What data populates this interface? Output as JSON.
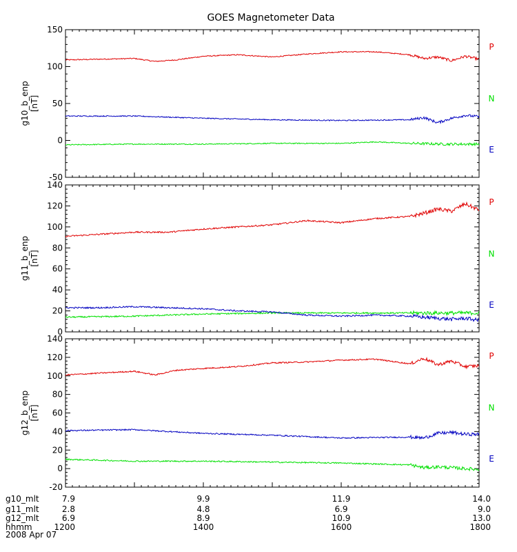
{
  "chart_data": {
    "type": "line",
    "title": "GOES Magnetometer Data",
    "date_label": "2008 Apr 07",
    "colors": {
      "P": "#e00000",
      "N": "#00e000",
      "E": "#0000c0"
    },
    "x_range": [
      1200,
      1800
    ],
    "panels": [
      {
        "ylabel": "g10_b_enp",
        "unit": "[nT]",
        "ylim": [
          -50,
          150
        ],
        "yticks": [
          -50,
          0,
          50,
          100,
          150
        ],
        "series": [
          {
            "name": "P",
            "color": "#e00000",
            "x": [
              1200,
              1250,
              1300,
              1330,
              1360,
              1400,
              1450,
              1500,
              1550,
              1600,
              1650,
              1700,
              1720,
              1740,
              1760,
              1780,
              1800
            ],
            "y": [
              109,
              110,
              111,
              107,
              109,
              114,
              116,
              113,
              117,
              120,
              120,
              116,
              111,
              113,
              108,
              114,
              110
            ]
          },
          {
            "name": "N",
            "color": "#00e000",
            "x": [
              1200,
              1300,
              1400,
              1500,
              1600,
              1650,
              1700,
              1750,
              1800
            ],
            "y": [
              -6,
              -5,
              -5,
              -4,
              -4,
              -2,
              -4,
              -5,
              -5
            ]
          },
          {
            "name": "E",
            "color": "#0000c0",
            "x": [
              1200,
              1300,
              1400,
              1500,
              1600,
              1700,
              1720,
              1740,
              1760,
              1780,
              1800
            ],
            "y": [
              33,
              33,
              30,
              28,
              27,
              28,
              31,
              24,
              30,
              34,
              32
            ]
          }
        ]
      },
      {
        "ylabel": "g11_b_enp",
        "unit": "[nT]",
        "ylim": [
          0,
          140
        ],
        "yticks": [
          0,
          20,
          40,
          60,
          80,
          100,
          120,
          140
        ],
        "series": [
          {
            "name": "P",
            "color": "#e00000",
            "x": [
              1200,
              1300,
              1350,
              1400,
              1450,
              1500,
              1550,
              1600,
              1650,
              1700,
              1720,
              1740,
              1760,
              1780,
              1800
            ],
            "y": [
              91,
              95,
              95,
              98,
              100,
              102,
              106,
              104,
              108,
              110,
              113,
              117,
              115,
              122,
              116
            ]
          },
          {
            "name": "N",
            "color": "#00e000",
            "x": [
              1200,
              1300,
              1400,
              1500,
              1600,
              1700,
              1800
            ],
            "y": [
              14,
              15,
              17,
              18,
              18,
              18,
              18
            ]
          },
          {
            "name": "E",
            "color": "#0000c0",
            "x": [
              1200,
              1250,
              1300,
              1350,
              1400,
              1450,
              1500,
              1550,
              1600,
              1650,
              1700,
              1720,
              1740,
              1760,
              1780,
              1800
            ],
            "y": [
              23,
              23,
              24,
              23,
              22,
              20,
              19,
              16,
              15,
              16,
              15,
              14,
              13,
              12,
              13,
              11
            ]
          }
        ]
      },
      {
        "ylabel": "g12_b_enp",
        "unit": "[nT]",
        "ylim": [
          -20,
          140
        ],
        "yticks": [
          -20,
          0,
          20,
          40,
          60,
          80,
          100,
          120,
          140
        ],
        "series": [
          {
            "name": "P",
            "color": "#e00000",
            "x": [
              1200,
              1250,
              1300,
              1330,
              1360,
              1400,
              1450,
              1500,
              1550,
              1600,
              1650,
              1700,
              1720,
              1740,
              1760,
              1780,
              1800
            ],
            "y": [
              101,
              103,
              105,
              101,
              106,
              108,
              110,
              114,
              115,
              117,
              118,
              113,
              119,
              112,
              116,
              110,
              111
            ]
          },
          {
            "name": "N",
            "color": "#00e000",
            "x": [
              1200,
              1300,
              1400,
              1500,
              1600,
              1700,
              1720,
              1740,
              1760,
              1780,
              1800
            ],
            "y": [
              10,
              8,
              8,
              7,
              6,
              4,
              1,
              2,
              1,
              0,
              -1
            ]
          },
          {
            "name": "E",
            "color": "#0000c0",
            "x": [
              1200,
              1300,
              1400,
              1500,
              1600,
              1700,
              1720,
              1740,
              1760,
              1780,
              1800
            ],
            "y": [
              41,
              42,
              38,
              36,
              33,
              34,
              33,
              38,
              39,
              37,
              37
            ]
          }
        ]
      }
    ],
    "time_axis": {
      "rows": [
        {
          "label": "g10_mlt",
          "values": [
            "7.9",
            "9.9",
            "11.9",
            "14.0"
          ]
        },
        {
          "label": "g11_mlt",
          "values": [
            "2.8",
            "4.8",
            "6.9",
            "9.0"
          ]
        },
        {
          "label": "g12_mlt",
          "values": [
            "6.9",
            "8.9",
            "10.9",
            "13.0"
          ]
        },
        {
          "label": "hhmm",
          "values": [
            "1200",
            "1400",
            "1600",
            "1800"
          ]
        }
      ],
      "tick_positions": [
        1200,
        1400,
        1600,
        1800
      ]
    }
  }
}
